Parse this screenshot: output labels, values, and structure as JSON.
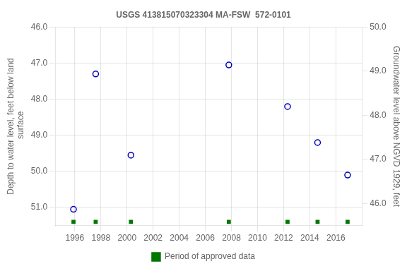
{
  "chart_data": {
    "type": "scatter",
    "title": "USGS 413815070323304 MA-FSW  572-0101",
    "y_label": "Depth to water level, feet below land\n surface",
    "y2_label": "Groundwater level above NGVD 1929, feet",
    "x": [
      1995.9,
      1997.6,
      2000.3,
      2007.8,
      2012.3,
      2014.6,
      2016.9
    ],
    "series": [
      {
        "color": "#0000bb",
        "marker": "circle",
        "values": [
          51.05,
          47.3,
          49.55,
          47.05,
          48.2,
          49.2,
          50.1
        ]
      },
      {
        "name": "Period of approved data",
        "color": "#007700",
        "marker": "square",
        "values": [
          51.4,
          51.4,
          51.4,
          51.4,
          51.4,
          51.4,
          51.4
        ]
      }
    ],
    "xlim": [
      1994.5,
      2018.0
    ],
    "xticks": [
      1996,
      1998,
      2000,
      2002,
      2004,
      2006,
      2008,
      2010,
      2012,
      2014,
      2016
    ],
    "ylim": [
      51.5,
      46.0
    ],
    "yticks": [
      {
        "value": 46.0,
        "label": "46.0"
      },
      {
        "value": 47.0,
        "label": "47.0"
      },
      {
        "value": 48.0,
        "label": "48.0"
      },
      {
        "value": 49.0,
        "label": "49.0"
      },
      {
        "value": 50.0,
        "label": "50.0"
      },
      {
        "value": 51.0,
        "label": "51.0"
      }
    ],
    "y2lim": [
      45.5,
      50.0
    ],
    "y2ticks": [
      {
        "value": 50.0,
        "label": "50.0"
      },
      {
        "value": 49.0,
        "label": "49.0"
      },
      {
        "value": 48.0,
        "label": "48.0"
      },
      {
        "value": 47.0,
        "label": "47.0"
      },
      {
        "value": 46.0,
        "label": "46.0"
      }
    ],
    "grid": true,
    "legend": "bottom"
  }
}
